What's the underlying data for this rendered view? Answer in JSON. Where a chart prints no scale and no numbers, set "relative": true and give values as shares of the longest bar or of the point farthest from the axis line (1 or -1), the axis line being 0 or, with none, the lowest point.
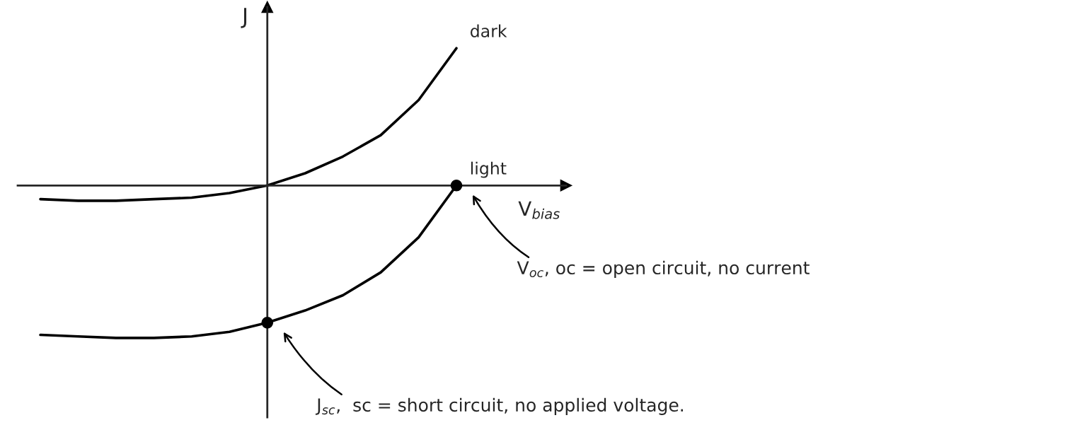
{
  "chart_data": {
    "type": "line",
    "relative": true,
    "xlabel": "V$_{bias}$",
    "ylabel": "J",
    "categories": [
      null,
      null,
      null,
      null,
      null,
      null,
      null,
      null,
      null,
      null,
      null,
      null
    ],
    "series": [
      {
        "name": "dark",
        "color": "#000000",
        "values": [
          -0.09,
          -0.1,
          -0.1,
          -0.09,
          -0.08,
          -0.05,
          0,
          0.08,
          0.19,
          0.33,
          0.56,
          0.9
        ]
      },
      {
        "name": "light",
        "color": "#000000",
        "values": [
          -0.98,
          -0.99,
          -1,
          -1,
          -0.99,
          -0.96,
          -0.9,
          -0.82,
          -0.72,
          -0.57,
          -0.34,
          0
        ]
      }
    ],
    "annotations": [
      "J$_{sc}$,  sc = short circuit, no applied voltage.",
      "V$_{oc}$, oc = open circuit, no current"
    ],
    "marker": "none",
    "line_style": "solid",
    "legend": false
  }
}
